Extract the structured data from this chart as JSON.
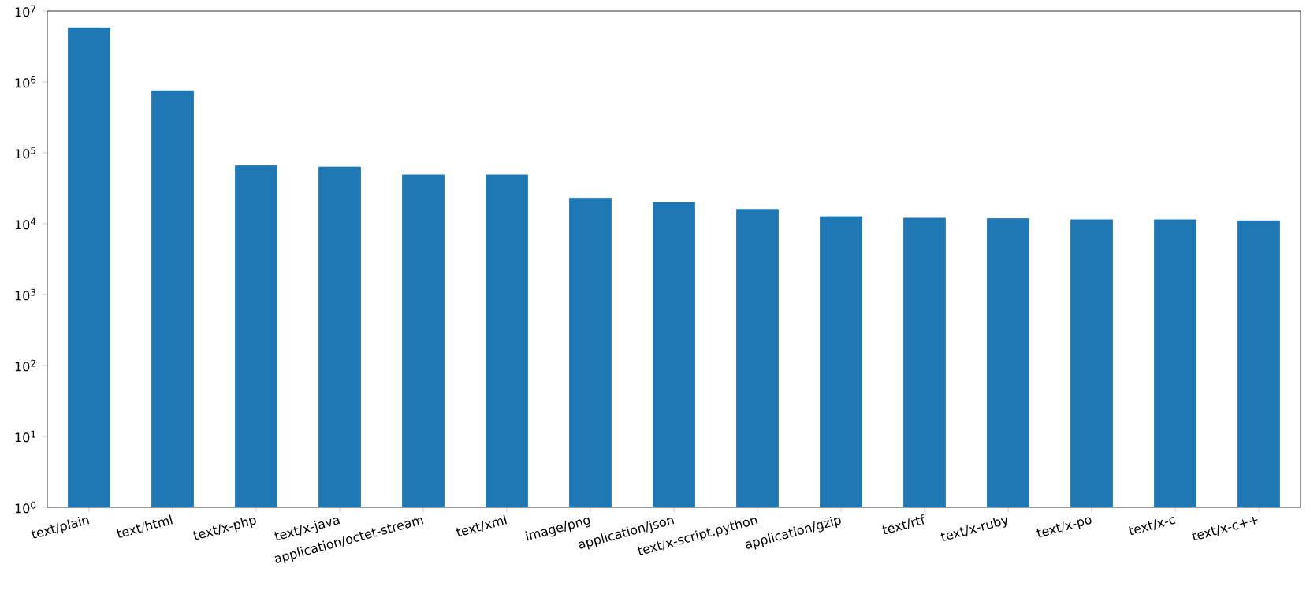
{
  "chart_data": {
    "type": "bar",
    "log": "y",
    "color": "#1f77b4",
    "categories": [
      "text/plain",
      "text/html",
      "text/x-php",
      "text/x-java",
      "application/octet-stream",
      "text/xml",
      "image/png",
      "application/json",
      "text/x-script.python",
      "application/gzip",
      "text/rtf",
      "text/x-ruby",
      "text/x-po",
      "text/x-c",
      "text/x-c++"
    ],
    "values": [
      5800000,
      750000,
      66000,
      63000,
      49000,
      49000,
      23000,
      20000,
      16000,
      12600,
      12000,
      11800,
      11400,
      11400,
      11000
    ],
    "ylim": [
      1,
      10000000
    ],
    "yticks": [
      {
        "value": 1,
        "label": "10$^{0}$"
      },
      {
        "value": 10,
        "label": "10$^{1}$"
      },
      {
        "value": 100,
        "label": "10$^{2}$"
      },
      {
        "value": 1000,
        "label": "10$^{3}$"
      },
      {
        "value": 10000,
        "label": "10$^{4}$"
      },
      {
        "value": 100000,
        "label": "10$^{5}$"
      },
      {
        "value": 1000000,
        "label": "10$^{6}$"
      },
      {
        "value": 10000000,
        "label": "10$^{7}$"
      }
    ]
  }
}
